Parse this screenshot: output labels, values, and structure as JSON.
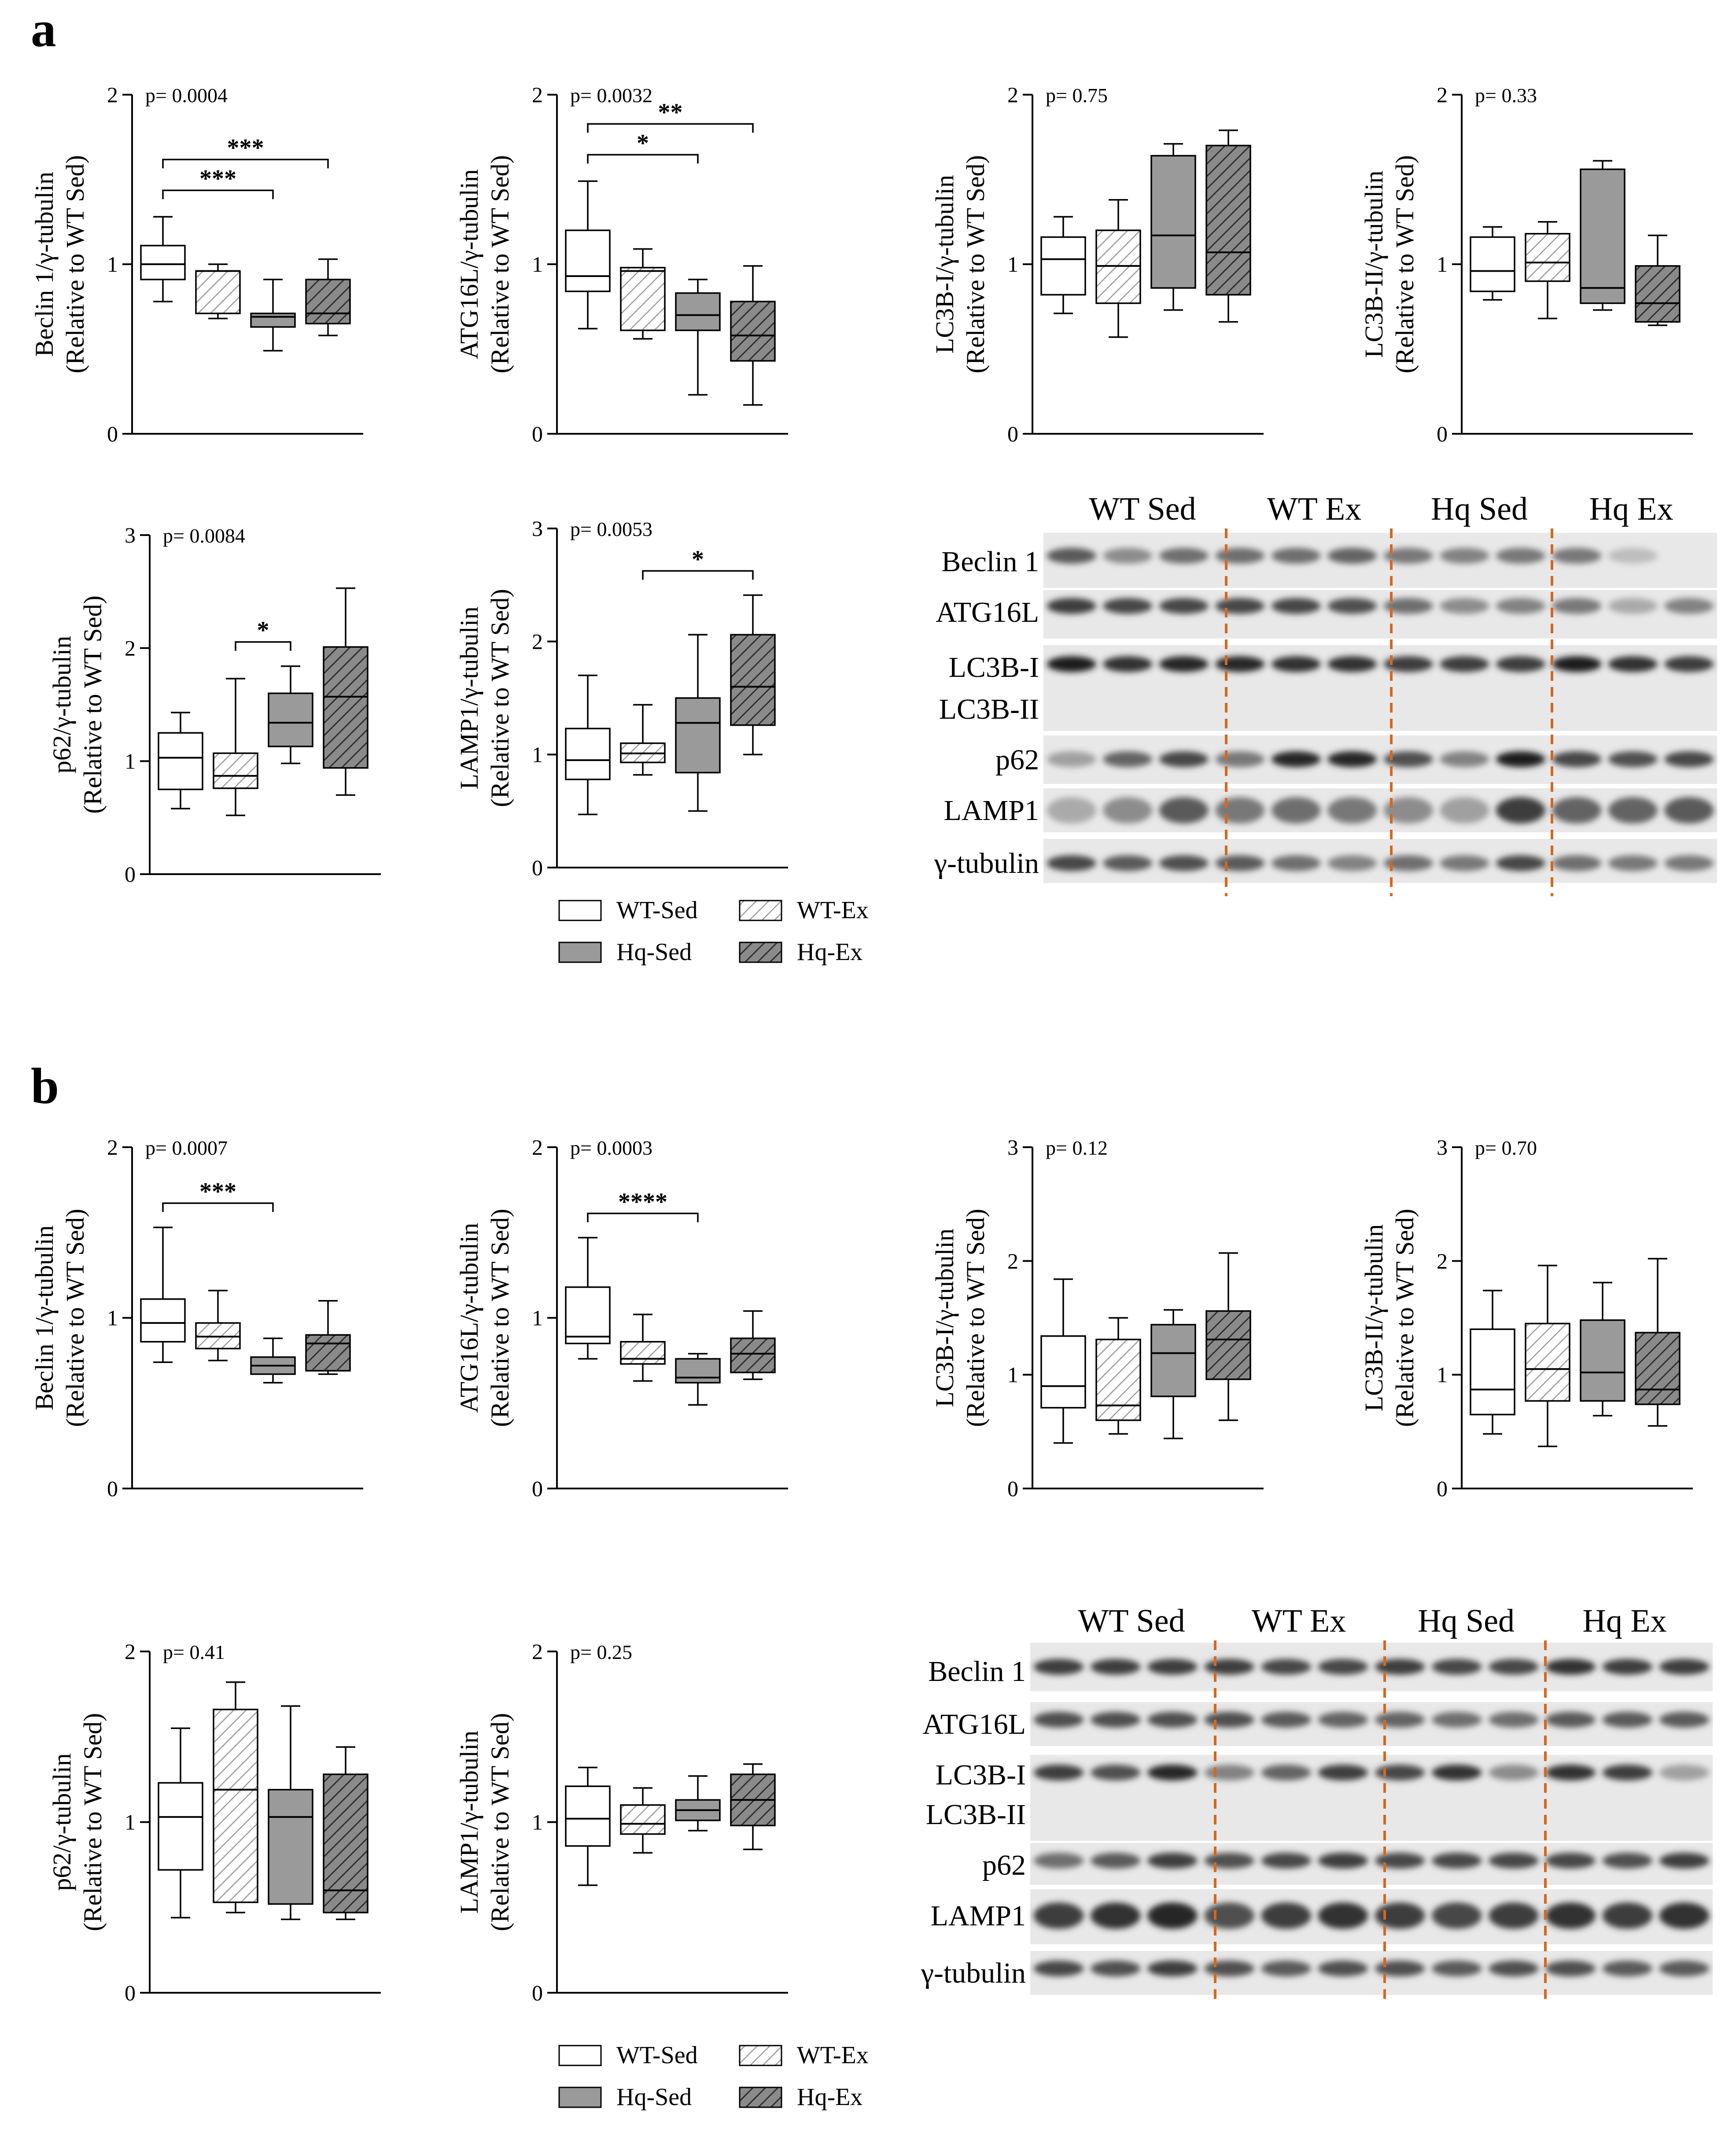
{
  "figure": {
    "panels": [
      {
        "label": "a",
        "charts": [
          {
            "id": "a-beclin1",
            "ylabel": [
              "Beclin 1/γ-tubulin",
              "(Relative to WT Sed)"
            ],
            "ymax": 2,
            "yticks": [
              "0",
              "1",
              "2"
            ],
            "pvalue": "p= 0.0004",
            "sig": [
              {
                "text": "***",
                "from": 0,
                "to": 2
              },
              {
                "text": "***",
                "from": 0,
                "to": 3
              }
            ]
          },
          {
            "id": "a-atg16l",
            "ylabel": [
              "ATG16L/γ-tubulin",
              "(Relative to WT Sed)"
            ],
            "ymax": 2,
            "yticks": [
              "0",
              "1",
              "2"
            ],
            "pvalue": "p= 0.0032",
            "sig": [
              {
                "text": "*",
                "from": 0,
                "to": 2
              },
              {
                "text": "**",
                "from": 0,
                "to": 3
              }
            ]
          },
          {
            "id": "a-lc3bi",
            "ylabel": [
              "LC3B-I/γ-tubulin",
              "(Relative to WT Sed)"
            ],
            "ymax": 2,
            "yticks": [
              "0",
              "1",
              "2"
            ],
            "pvalue": "p= 0.75",
            "sig": []
          },
          {
            "id": "a-lc3bii",
            "ylabel": [
              "LC3B-II/γ-tubulin",
              "(Relative to WT Sed)"
            ],
            "ymax": 2,
            "yticks": [
              "0",
              "1",
              "2"
            ],
            "pvalue": "p= 0.33",
            "sig": []
          },
          {
            "id": "a-p62",
            "ylabel": [
              "p62/γ-tubulin",
              "(Relative to WT Sed)"
            ],
            "ymax": 3,
            "yticks": [
              "0",
              "1",
              "2",
              "3"
            ],
            "pvalue": "p= 0.0084",
            "sig": [
              {
                "text": "*",
                "from": 1,
                "to": 2
              }
            ]
          },
          {
            "id": "a-lamp1",
            "ylabel": [
              "LAMP1/γ-tubulin",
              "(Relative to WT Sed)"
            ],
            "ymax": 3,
            "yticks": [
              "0",
              "1",
              "2",
              "3"
            ],
            "pvalue": "p= 0.0053",
            "sig": [
              {
                "text": "*",
                "from": 1,
                "to": 3
              }
            ]
          }
        ],
        "blot": {
          "groups": [
            "WT Sed",
            "WT Ex",
            "Hq Sed",
            "Hq Ex"
          ],
          "rows": [
            "Beclin 1",
            "ATG16L",
            "LC3B-I",
            "LC3B-II",
            "p62",
            "LAMP1",
            "γ-tubulin"
          ]
        }
      },
      {
        "label": "b",
        "charts": [
          {
            "id": "b-beclin1",
            "ylabel": [
              "Beclin 1/γ-tubulin",
              "(Relative to WT Sed)"
            ],
            "ymax": 2,
            "yticks": [
              "0",
              "1",
              "2"
            ],
            "pvalue": "p= 0.0007",
            "sig": [
              {
                "text": "***",
                "from": 0,
                "to": 2
              }
            ]
          },
          {
            "id": "b-atg16l",
            "ylabel": [
              "ATG16L/γ-tubulin",
              "(Relative to WT Sed)"
            ],
            "ymax": 2,
            "yticks": [
              "0",
              "1",
              "2"
            ],
            "pvalue": "p= 0.0003",
            "sig": [
              {
                "text": "****",
                "from": 0,
                "to": 2
              }
            ]
          },
          {
            "id": "b-lc3bi",
            "ylabel": [
              "LC3B-I/γ-tubulin",
              "(Relative to WT Sed)"
            ],
            "ymax": 3,
            "yticks": [
              "0",
              "1",
              "2",
              "3"
            ],
            "pvalue": "p= 0.12",
            "sig": []
          },
          {
            "id": "b-lc3bii",
            "ylabel": [
              "LC3B-II/γ-tubulin",
              "(Relative to WT Sed)"
            ],
            "ymax": 3,
            "yticks": [
              "0",
              "1",
              "2",
              "3"
            ],
            "pvalue": "p= 0.70",
            "sig": []
          },
          {
            "id": "b-p62",
            "ylabel": [
              "p62/γ-tubulin",
              "(Relative to WT Sed)"
            ],
            "ymax": 2,
            "yticks": [
              "0",
              "1",
              "2"
            ],
            "pvalue": "p= 0.41",
            "sig": []
          },
          {
            "id": "b-lamp1",
            "ylabel": [
              "LAMP1/γ-tubulin",
              "(Relative to WT Sed)"
            ],
            "ymax": 2,
            "yticks": [
              "0",
              "1",
              "2"
            ],
            "pvalue": "p= 0.25",
            "sig": []
          }
        ],
        "blot": {
          "groups": [
            "WT Sed",
            "WT Ex",
            "Hq Sed",
            "Hq Ex"
          ],
          "rows": [
            "Beclin 1",
            "ATG16L",
            "LC3B-I",
            "LC3B-II",
            "p62",
            "LAMP1",
            "γ-tubulin"
          ]
        }
      }
    ],
    "legend": [
      {
        "label": "WT-Sed",
        "style": "open"
      },
      {
        "label": "WT-Ex",
        "style": "light-hatch"
      },
      {
        "label": "Hq-Sed",
        "style": "gray"
      },
      {
        "label": "Hq-Ex",
        "style": "dark-hatch"
      }
    ],
    "colors": {
      "gray_fill": "#9a9a9a",
      "dark_hatch_fill": "#8a8a8a",
      "divider": "#d2691e"
    }
  },
  "chart_data": [
    {
      "type": "box",
      "id": "a-beclin1",
      "categories": [
        "WT-Sed",
        "WT-Ex",
        "Hq-Sed",
        "Hq-Ex"
      ],
      "ylim": [
        0,
        2
      ],
      "series": [
        {
          "name": "WT-Sed",
          "min": 0.78,
          "q1": 0.91,
          "median": 1.0,
          "q3": 1.11,
          "max": 1.28
        },
        {
          "name": "WT-Ex",
          "min": 0.68,
          "q1": 0.71,
          "median": 0.96,
          "q3": 0.96,
          "max": 1.0
        },
        {
          "name": "Hq-Sed",
          "min": 0.49,
          "q1": 0.63,
          "median": 0.69,
          "q3": 0.71,
          "max": 0.91
        },
        {
          "name": "Hq-Ex",
          "min": 0.58,
          "q1": 0.65,
          "median": 0.71,
          "q3": 0.91,
          "max": 1.03
        }
      ]
    },
    {
      "type": "box",
      "id": "a-atg16l",
      "categories": [
        "WT-Sed",
        "WT-Ex",
        "Hq-Sed",
        "Hq-Ex"
      ],
      "ylim": [
        0,
        2
      ],
      "series": [
        {
          "name": "WT-Sed",
          "min": 0.62,
          "q1": 0.84,
          "median": 0.93,
          "q3": 1.2,
          "max": 1.49
        },
        {
          "name": "WT-Ex",
          "min": 0.56,
          "q1": 0.61,
          "median": 0.96,
          "q3": 0.98,
          "max": 1.09
        },
        {
          "name": "Hq-Sed",
          "min": 0.23,
          "q1": 0.61,
          "median": 0.7,
          "q3": 0.83,
          "max": 0.91
        },
        {
          "name": "Hq-Ex",
          "min": 0.17,
          "q1": 0.43,
          "median": 0.58,
          "q3": 0.78,
          "max": 0.99
        }
      ]
    },
    {
      "type": "box",
      "id": "a-lc3bi",
      "categories": [
        "WT-Sed",
        "WT-Ex",
        "Hq-Sed",
        "Hq-Ex"
      ],
      "ylim": [
        0,
        2
      ],
      "series": [
        {
          "name": "WT-Sed",
          "min": 0.71,
          "q1": 0.82,
          "median": 1.03,
          "q3": 1.16,
          "max": 1.28
        },
        {
          "name": "WT-Ex",
          "min": 0.57,
          "q1": 0.77,
          "median": 0.99,
          "q3": 1.2,
          "max": 1.38
        },
        {
          "name": "Hq-Sed",
          "min": 0.73,
          "q1": 0.86,
          "median": 1.17,
          "q3": 1.64,
          "max": 1.71
        },
        {
          "name": "Hq-Ex",
          "min": 0.66,
          "q1": 0.82,
          "median": 1.07,
          "q3": 1.7,
          "max": 1.79
        }
      ]
    },
    {
      "type": "box",
      "id": "a-lc3bii",
      "categories": [
        "WT-Sed",
        "WT-Ex",
        "Hq-Sed",
        "Hq-Ex"
      ],
      "ylim": [
        0,
        2
      ],
      "series": [
        {
          "name": "WT-Sed",
          "min": 0.79,
          "q1": 0.84,
          "median": 0.96,
          "q3": 1.16,
          "max": 1.22
        },
        {
          "name": "WT-Ex",
          "min": 0.68,
          "q1": 0.9,
          "median": 1.01,
          "q3": 1.18,
          "max": 1.25
        },
        {
          "name": "Hq-Sed",
          "min": 0.73,
          "q1": 0.77,
          "median": 0.86,
          "q3": 1.56,
          "max": 1.61
        },
        {
          "name": "Hq-Ex",
          "min": 0.64,
          "q1": 0.66,
          "median": 0.77,
          "q3": 0.99,
          "max": 1.17
        }
      ]
    },
    {
      "type": "box",
      "id": "a-p62",
      "categories": [
        "WT-Sed",
        "WT-Ex",
        "Hq-Sed",
        "Hq-Ex"
      ],
      "ylim": [
        0,
        3
      ],
      "series": [
        {
          "name": "WT-Sed",
          "min": 0.58,
          "q1": 0.75,
          "median": 1.03,
          "q3": 1.25,
          "max": 1.43
        },
        {
          "name": "WT-Ex",
          "min": 0.52,
          "q1": 0.76,
          "median": 0.87,
          "q3": 1.07,
          "max": 1.73
        },
        {
          "name": "Hq-Sed",
          "min": 0.98,
          "q1": 1.13,
          "median": 1.34,
          "q3": 1.6,
          "max": 1.84
        },
        {
          "name": "Hq-Ex",
          "min": 0.7,
          "q1": 0.94,
          "median": 1.57,
          "q3": 2.01,
          "max": 2.53
        }
      ]
    },
    {
      "type": "box",
      "id": "a-lamp1",
      "categories": [
        "WT-Sed",
        "WT-Ex",
        "Hq-Sed",
        "Hq-Ex"
      ],
      "ylim": [
        0,
        3
      ],
      "series": [
        {
          "name": "WT-Sed",
          "min": 0.47,
          "q1": 0.78,
          "median": 0.95,
          "q3": 1.23,
          "max": 1.7
        },
        {
          "name": "WT-Ex",
          "min": 0.82,
          "q1": 0.93,
          "median": 1.01,
          "q3": 1.1,
          "max": 1.44
        },
        {
          "name": "Hq-Sed",
          "min": 0.5,
          "q1": 0.84,
          "median": 1.28,
          "q3": 1.5,
          "max": 2.06
        },
        {
          "name": "Hq-Ex",
          "min": 1.0,
          "q1": 1.26,
          "median": 1.6,
          "q3": 2.06,
          "max": 2.41
        }
      ]
    },
    {
      "type": "box",
      "id": "b-beclin1",
      "categories": [
        "WT-Sed",
        "WT-Ex",
        "Hq-Sed",
        "Hq-Ex"
      ],
      "ylim": [
        0,
        2
      ],
      "series": [
        {
          "name": "WT-Sed",
          "min": 0.74,
          "q1": 0.86,
          "median": 0.97,
          "q3": 1.11,
          "max": 1.53
        },
        {
          "name": "WT-Ex",
          "min": 0.75,
          "q1": 0.82,
          "median": 0.89,
          "q3": 0.97,
          "max": 1.16
        },
        {
          "name": "Hq-Sed",
          "min": 0.62,
          "q1": 0.67,
          "median": 0.72,
          "q3": 0.77,
          "max": 0.88
        },
        {
          "name": "Hq-Ex",
          "min": 0.67,
          "q1": 0.69,
          "median": 0.85,
          "q3": 0.9,
          "max": 1.1
        }
      ]
    },
    {
      "type": "box",
      "id": "b-atg16l",
      "categories": [
        "WT-Sed",
        "WT-Ex",
        "Hq-Sed",
        "Hq-Ex"
      ],
      "ylim": [
        0,
        2
      ],
      "series": [
        {
          "name": "WT-Sed",
          "min": 0.76,
          "q1": 0.85,
          "median": 0.89,
          "q3": 1.18,
          "max": 1.47
        },
        {
          "name": "WT-Ex",
          "min": 0.63,
          "q1": 0.73,
          "median": 0.76,
          "q3": 0.86,
          "max": 1.02
        },
        {
          "name": "Hq-Sed",
          "min": 0.49,
          "q1": 0.62,
          "median": 0.65,
          "q3": 0.76,
          "max": 0.79
        },
        {
          "name": "Hq-Ex",
          "min": 0.64,
          "q1": 0.68,
          "median": 0.79,
          "q3": 0.88,
          "max": 1.04
        }
      ]
    },
    {
      "type": "box",
      "id": "b-lc3bi",
      "categories": [
        "WT-Sed",
        "WT-Ex",
        "Hq-Sed",
        "Hq-Ex"
      ],
      "ylim": [
        0,
        3
      ],
      "series": [
        {
          "name": "WT-Sed",
          "min": 0.4,
          "q1": 0.71,
          "median": 0.9,
          "q3": 1.34,
          "max": 1.84
        },
        {
          "name": "WT-Ex",
          "min": 0.48,
          "q1": 0.6,
          "median": 0.73,
          "q3": 1.31,
          "max": 1.5
        },
        {
          "name": "Hq-Sed",
          "min": 0.44,
          "q1": 0.81,
          "median": 1.19,
          "q3": 1.44,
          "max": 1.57
        },
        {
          "name": "Hq-Ex",
          "min": 0.6,
          "q1": 0.96,
          "median": 1.31,
          "q3": 1.56,
          "max": 2.07
        }
      ]
    },
    {
      "type": "box",
      "id": "b-lc3bii",
      "categories": [
        "WT-Sed",
        "WT-Ex",
        "Hq-Sed",
        "Hq-Ex"
      ],
      "ylim": [
        0,
        3
      ],
      "series": [
        {
          "name": "WT-Sed",
          "min": 0.48,
          "q1": 0.65,
          "median": 0.87,
          "q3": 1.4,
          "max": 1.74
        },
        {
          "name": "WT-Ex",
          "min": 0.37,
          "q1": 0.77,
          "median": 1.05,
          "q3": 1.45,
          "max": 1.96
        },
        {
          "name": "Hq-Sed",
          "min": 0.64,
          "q1": 0.77,
          "median": 1.02,
          "q3": 1.48,
          "max": 1.81
        },
        {
          "name": "Hq-Ex",
          "min": 0.55,
          "q1": 0.74,
          "median": 0.87,
          "q3": 1.37,
          "max": 2.02
        }
      ]
    },
    {
      "type": "box",
      "id": "b-p62",
      "categories": [
        "WT-Sed",
        "WT-Ex",
        "Hq-Sed",
        "Hq-Ex"
      ],
      "ylim": [
        0,
        2
      ],
      "series": [
        {
          "name": "WT-Sed",
          "min": 0.44,
          "q1": 0.72,
          "median": 1.03,
          "q3": 1.23,
          "max": 1.55
        },
        {
          "name": "WT-Ex",
          "min": 0.47,
          "q1": 0.53,
          "median": 1.19,
          "q3": 1.66,
          "max": 1.82
        },
        {
          "name": "Hq-Sed",
          "min": 0.43,
          "q1": 0.52,
          "median": 1.03,
          "q3": 1.19,
          "max": 1.68
        },
        {
          "name": "Hq-Ex",
          "min": 0.43,
          "q1": 0.47,
          "median": 0.6,
          "q3": 1.28,
          "max": 1.44
        }
      ]
    },
    {
      "type": "box",
      "id": "b-lamp1",
      "categories": [
        "WT-Sed",
        "WT-Ex",
        "Hq-Sed",
        "Hq-Ex"
      ],
      "ylim": [
        0,
        2
      ],
      "series": [
        {
          "name": "WT-Sed",
          "min": 0.63,
          "q1": 0.86,
          "median": 1.02,
          "q3": 1.21,
          "max": 1.32
        },
        {
          "name": "WT-Ex",
          "min": 0.82,
          "q1": 0.93,
          "median": 0.99,
          "q3": 1.1,
          "max": 1.2
        },
        {
          "name": "Hq-Sed",
          "min": 0.95,
          "q1": 1.01,
          "median": 1.07,
          "q3": 1.13,
          "max": 1.27
        },
        {
          "name": "Hq-Ex",
          "min": 0.84,
          "q1": 0.98,
          "median": 1.13,
          "q3": 1.28,
          "max": 1.34
        }
      ]
    }
  ]
}
